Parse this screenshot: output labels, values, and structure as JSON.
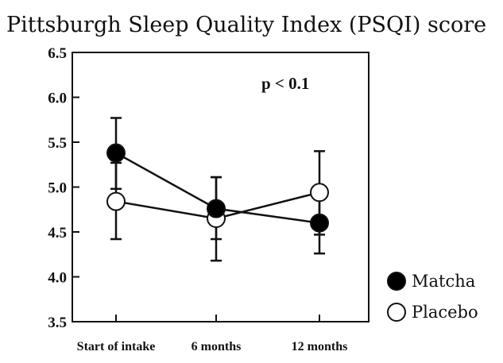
{
  "chart_data": {
    "type": "line",
    "title": "Pittsburgh Sleep Quality Index (PSQI) score",
    "xlabel": "",
    "ylabel": "",
    "categories": [
      "Start of intake",
      "6 months",
      "12 months"
    ],
    "ylim": [
      3.5,
      6.5
    ],
    "yticks": [
      "6.5",
      "6.0",
      "5.5",
      "5.0",
      "4.5",
      "4.0",
      "3.5"
    ],
    "grid": false,
    "legend_position": "right",
    "annotation": "p < 0.1",
    "series": [
      {
        "name": "Matcha",
        "marker": "filled-circle",
        "values": [
          5.38,
          4.76,
          4.6
        ],
        "error_low": [
          4.98,
          4.42,
          4.26
        ],
        "error_high": [
          5.77,
          5.11,
          4.93
        ]
      },
      {
        "name": "Placebo",
        "marker": "open-circle",
        "values": [
          4.84,
          4.65,
          4.94
        ],
        "error_low": [
          4.42,
          4.18,
          4.47
        ],
        "error_high": [
          5.27,
          5.11,
          5.4
        ]
      }
    ],
    "colors": {
      "line": "#111111",
      "fill_matcha": "#000000",
      "fill_placebo": "#ffffff"
    }
  }
}
